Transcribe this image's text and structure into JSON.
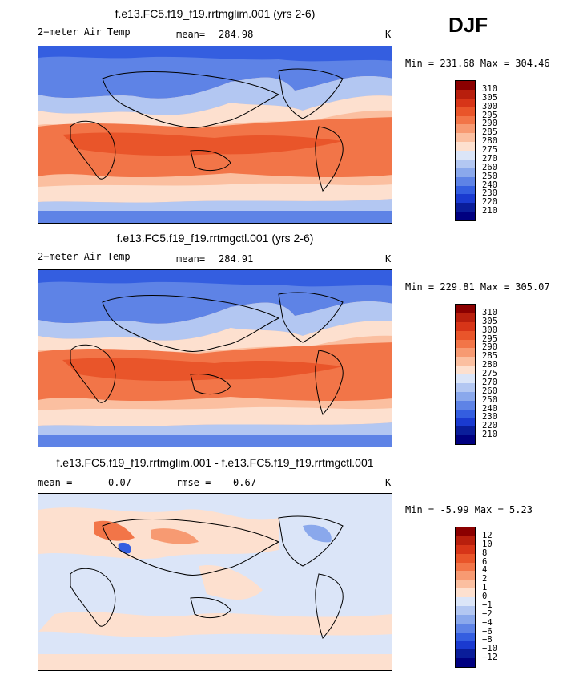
{
  "season": "DJF",
  "panels": [
    {
      "title": "f.e13.FC5.f19_f19.rrtmglim.001 (yrs 2-6)",
      "left_label": "2−meter Air Temp",
      "stat_label": "mean=",
      "stat_value": "284.98",
      "stat2_label": "",
      "stat2_value": "",
      "units": "K",
      "minmax": "Min = 231.68 Max = 304.46",
      "colorbar": {
        "labels": [
          "310",
          "305",
          "300",
          "295",
          "290",
          "285",
          "280",
          "275",
          "270",
          "260",
          "250",
          "240",
          "230",
          "220",
          "210"
        ],
        "colors": [
          "#8b0000",
          "#b81f0d",
          "#d73518",
          "#e9552a",
          "#f27548",
          "#f79a72",
          "#fbbfa0",
          "#fde0cf",
          "#dbe5f8",
          "#b3c7f2",
          "#8aa8ec",
          "#5e83e6",
          "#345ee0",
          "#1a3ad0",
          "#0a1d9a",
          "#000080"
        ]
      }
    },
    {
      "title": "f.e13.FC5.f19_f19.rrtmgctl.001 (yrs 2-6)",
      "left_label": "2−meter Air Temp",
      "stat_label": "mean=",
      "stat_value": "284.91",
      "stat2_label": "",
      "stat2_value": "",
      "units": "K",
      "minmax": "Min = 229.81 Max = 305.07",
      "colorbar": {
        "labels": [
          "310",
          "305",
          "300",
          "295",
          "290",
          "285",
          "280",
          "275",
          "270",
          "260",
          "250",
          "240",
          "230",
          "220",
          "210"
        ],
        "colors": [
          "#8b0000",
          "#b81f0d",
          "#d73518",
          "#e9552a",
          "#f27548",
          "#f79a72",
          "#fbbfa0",
          "#fde0cf",
          "#dbe5f8",
          "#b3c7f2",
          "#8aa8ec",
          "#5e83e6",
          "#345ee0",
          "#1a3ad0",
          "#0a1d9a",
          "#000080"
        ]
      }
    },
    {
      "title": "f.e13.FC5.f19_f19.rrtmglim.001 - f.e13.FC5.f19_f19.rrtmgctl.001",
      "left_label": "",
      "stat_label": "mean =",
      "stat_value": "0.07",
      "stat2_label": "rmse =",
      "stat2_value": "0.67",
      "units": "K",
      "minmax": "Min =  -5.99 Max =   5.23",
      "colorbar": {
        "labels": [
          "12",
          "10",
          "8",
          "6",
          "4",
          "2",
          "1",
          "0",
          "−1",
          "−2",
          "−4",
          "−6",
          "−8",
          "−10",
          "−12"
        ],
        "colors": [
          "#8b0000",
          "#b81f0d",
          "#d73518",
          "#e9552a",
          "#f27548",
          "#f79a72",
          "#fbbfa0",
          "#fde0cf",
          "#dbe5f8",
          "#b3c7f2",
          "#8aa8ec",
          "#5e83e6",
          "#345ee0",
          "#1a3ad0",
          "#0a1d9a",
          "#000080"
        ]
      }
    }
  ]
}
